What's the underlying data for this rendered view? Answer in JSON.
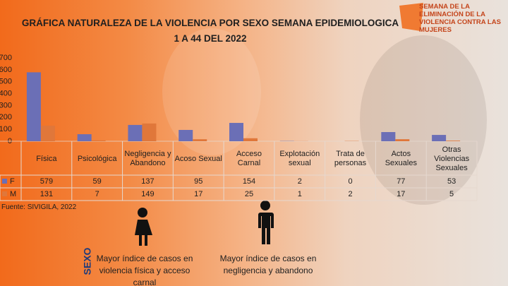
{
  "chart_data": {
    "type": "bar",
    "title": "GRÁFICA NATURALEZA DE LA VIOLENCIA POR SEXO SEMANA EPIDEMIOLOGICA 1 A 44 DEL 2022",
    "categories": [
      "Física",
      "Psicológica",
      "Negligencia y Abandono",
      "Acoso Sexual",
      "Acceso Carnal",
      "Explotación sexual",
      "Trata de personas",
      "Actos Sexuales",
      "Otras Violencias Sexuales"
    ],
    "series": [
      {
        "name": "F",
        "color": "#6b6fb6",
        "values": [
          579,
          59,
          137,
          95,
          154,
          2,
          0,
          77,
          53
        ]
      },
      {
        "name": "M",
        "color": "#e0773a",
        "values": [
          131,
          7,
          149,
          17,
          25,
          1,
          2,
          17,
          5
        ]
      }
    ],
    "ylim": [
      0,
      700
    ],
    "yticks": [
      0,
      100,
      200,
      300,
      400,
      500,
      600,
      700
    ],
    "source": "Fuente: SIVIGILA, 2022"
  },
  "logo": {
    "text": "SEMANA DE LA ELIMINACIÓN DE LA VIOLENCIA CONTRA LAS MUJERES"
  },
  "side_label": "SEXO",
  "annotations": [
    "Mayor índice de casos en violencia física y acceso carnal",
    "Mayor índice de casos en negligencia y abandono"
  ]
}
